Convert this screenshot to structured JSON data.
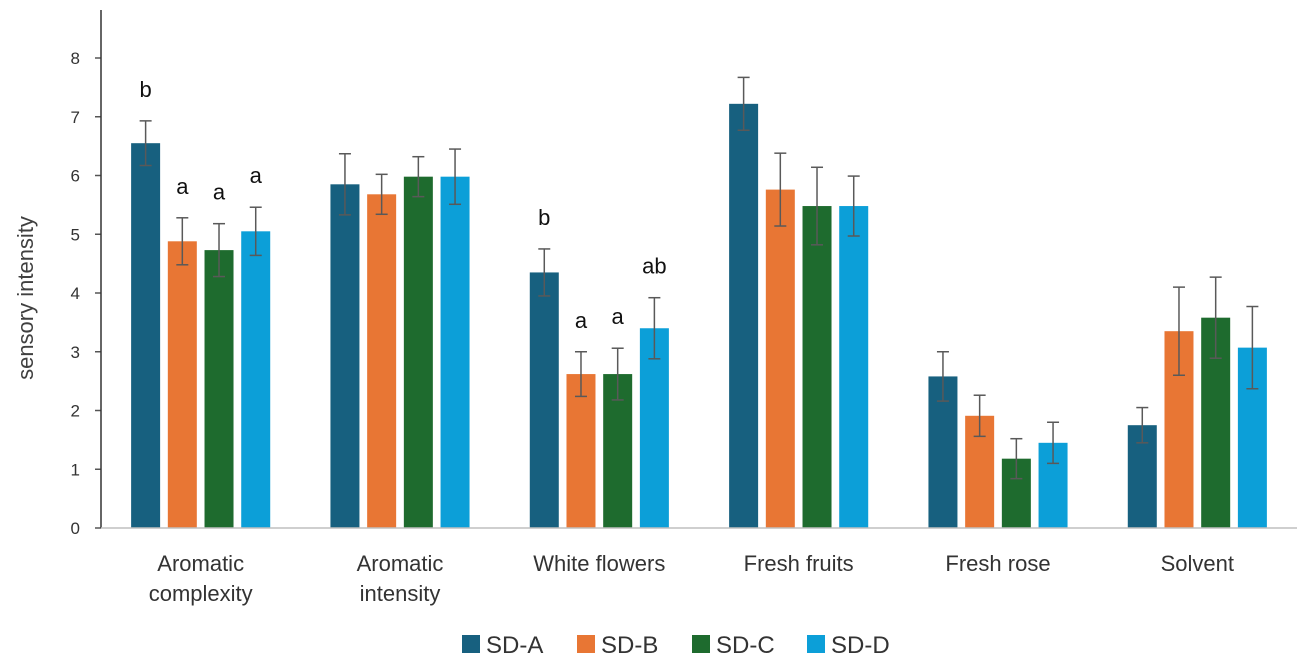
{
  "chart_data": {
    "type": "bar",
    "title": "",
    "xlabel": "",
    "ylabel": "sensory intensity",
    "ylim": [
      0,
      8
    ],
    "yticks": [
      0,
      1,
      2,
      3,
      4,
      5,
      6,
      7,
      8
    ],
    "grid": false,
    "legend_position": "bottom",
    "categories": [
      [
        "Aromatic",
        "complexity"
      ],
      [
        "Aromatic",
        "intensity"
      ],
      [
        "White flowers"
      ],
      [
        "Fresh fruits"
      ],
      [
        "Fresh rose"
      ],
      [
        "Solvent"
      ]
    ],
    "series": [
      {
        "name": "SD-A",
        "color": "#17607f",
        "values": [
          6.55,
          5.85,
          4.35,
          7.22,
          2.58,
          1.75
        ],
        "errors": [
          0.38,
          0.52,
          0.4,
          0.45,
          0.42,
          0.3
        ],
        "sig_labels": [
          "b",
          "",
          "b",
          "",
          "",
          ""
        ]
      },
      {
        "name": "SD-B",
        "color": "#e87634",
        "values": [
          4.88,
          5.68,
          2.62,
          5.76,
          1.91,
          3.35
        ],
        "errors": [
          0.4,
          0.34,
          0.38,
          0.62,
          0.35,
          0.75
        ],
        "sig_labels": [
          "a",
          "",
          "a",
          "",
          "",
          ""
        ]
      },
      {
        "name": "SD-C",
        "color": "#1e6b2e",
        "values": [
          4.73,
          5.98,
          2.62,
          5.48,
          1.18,
          3.58
        ],
        "errors": [
          0.45,
          0.34,
          0.44,
          0.66,
          0.34,
          0.69
        ],
        "sig_labels": [
          "a",
          "",
          "a",
          "",
          "",
          ""
        ]
      },
      {
        "name": "SD-D",
        "color": "#0c9fd8",
        "values": [
          5.05,
          5.98,
          3.4,
          5.48,
          1.45,
          3.07
        ],
        "errors": [
          0.41,
          0.47,
          0.52,
          0.51,
          0.35,
          0.7
        ],
        "sig_labels": [
          "a",
          "",
          "ab",
          "",
          "",
          ""
        ]
      }
    ]
  }
}
